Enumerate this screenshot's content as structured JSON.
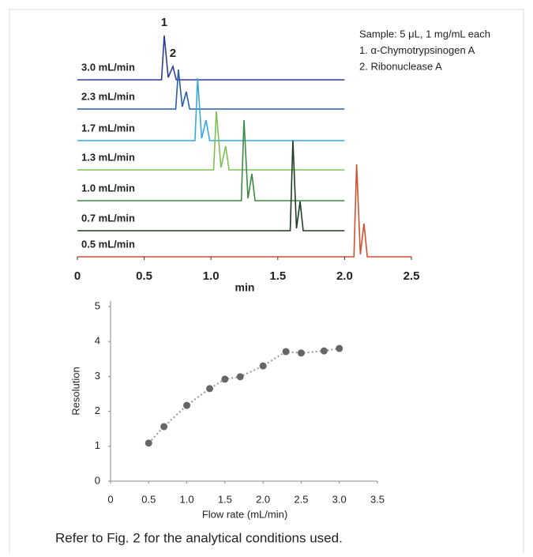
{
  "chart_data": [
    {
      "type": "line",
      "xlabel": "min",
      "xlim": [
        0,
        2.5
      ],
      "xticks": [
        0,
        0.5,
        {
          "value": 1,
          "label": "1.0"
        },
        1.5,
        {
          "value": 2,
          "label": "2.0"
        },
        2.5
      ],
      "peak_labels": [
        "1",
        "2"
      ],
      "legend_lines": [
        "Sample: 5 μL, 1 mg/mL each",
        "1. α-Chymotrypsinogen A",
        "2. Ribonuclease A"
      ],
      "series": [
        {
          "name": "3.0 mL/min",
          "color": "#2e3f94",
          "x": [
            0,
            0.63,
            0.65,
            0.68,
            0.715,
            0.74,
            2.0
          ],
          "values": [
            0,
            0,
            56,
            3,
            17,
            0,
            0
          ]
        },
        {
          "name": "2.3 mL/min",
          "color": "#2a5ca8",
          "x": [
            0,
            0.736,
            0.756,
            0.785,
            0.815,
            0.84,
            2.0
          ],
          "values": [
            0,
            0,
            50,
            3,
            22,
            0,
            0
          ]
        },
        {
          "name": "1.7 mL/min",
          "color": "#36a9e1",
          "x": [
            0,
            0.88,
            0.9,
            0.93,
            0.963,
            0.99,
            2.0
          ],
          "values": [
            0,
            0,
            79,
            3,
            26,
            0,
            0
          ]
        },
        {
          "name": "1.3 mL/min",
          "color": "#7dc150",
          "x": [
            0,
            1.02,
            1.04,
            1.075,
            1.11,
            1.135,
            2.0
          ],
          "values": [
            0,
            0,
            74,
            3,
            30,
            0,
            0
          ]
        },
        {
          "name": "1.0 mL/min",
          "color": "#3d8a45",
          "x": [
            0,
            1.227,
            1.247,
            1.277,
            1.306,
            1.33,
            2.0
          ],
          "values": [
            0,
            0,
            102,
            3,
            34,
            0,
            0
          ]
        },
        {
          "name": "0.7 mL/min",
          "color": "#1f3d24",
          "x": [
            0,
            1.593,
            1.613,
            1.64,
            1.667,
            1.69,
            2.0
          ],
          "values": [
            0,
            0,
            114,
            3,
            37,
            0,
            0
          ]
        },
        {
          "name": "0.5 mL/min",
          "color": "#d3502e",
          "x": [
            0,
            2.07,
            2.09,
            2.118,
            2.145,
            2.17,
            2.5
          ],
          "values": [
            0,
            0,
            117,
            3,
            42,
            0,
            0
          ]
        }
      ]
    },
    {
      "type": "scatter",
      "xlabel": "Flow rate (mL/min)",
      "ylabel": "Resolution",
      "xlim": [
        0,
        3.5
      ],
      "ylim": [
        0,
        5
      ],
      "xticks": [
        0,
        0.5,
        {
          "value": 1,
          "label": "1.0"
        },
        1.5,
        {
          "value": 2,
          "label": "2.0"
        },
        2.5,
        {
          "value": 3,
          "label": "3.0"
        },
        3.5
      ],
      "yticks": [
        0,
        1,
        2,
        3,
        4,
        5
      ],
      "color": "#666666",
      "trend_color": "#999999",
      "x": [
        0.5,
        0.7,
        1.0,
        1.3,
        1.5,
        1.7,
        2.0,
        2.3,
        2.5,
        2.8,
        3.0
      ],
      "values": [
        1.09,
        1.56,
        2.17,
        2.65,
        2.92,
        2.99,
        3.3,
        3.71,
        3.67,
        3.73,
        3.8
      ]
    }
  ],
  "footnote": "Refer to Fig. 2 for the analytical conditions used."
}
